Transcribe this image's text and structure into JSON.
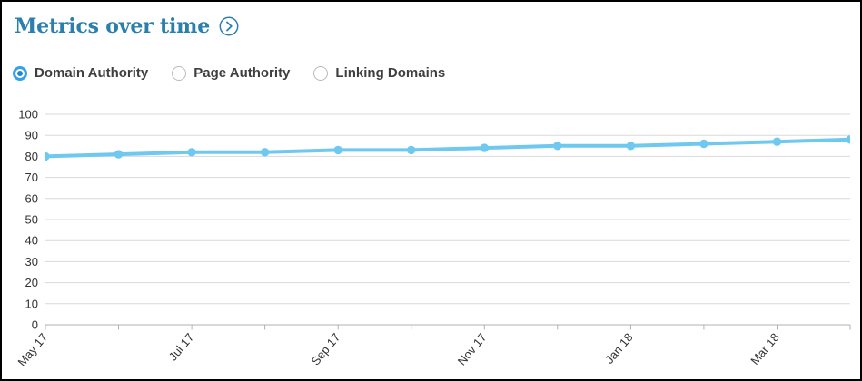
{
  "header": {
    "title": "Metrics over time",
    "chevron_icon": "chevron-right-circle-icon"
  },
  "metric_toggle": {
    "options": [
      {
        "label": "Domain Authority",
        "selected": true
      },
      {
        "label": "Page Authority",
        "selected": false
      },
      {
        "label": "Linking Domains",
        "selected": false
      }
    ]
  },
  "colors": {
    "title": "#2b7fac",
    "line": "#6fc8ef",
    "grid": "#d9d9d9",
    "axis": "#b0b0b0",
    "tick_text": "#333333",
    "radio_selected": "#34a1ee",
    "radio_dot": "#2287d2",
    "radio_border": "#b9b9b9"
  },
  "chart_data": {
    "type": "line",
    "title": "Metrics over time",
    "categories": [
      "May 17",
      "Jun 17",
      "Jul 17",
      "Aug 17",
      "Sep 17",
      "Oct 17",
      "Nov 17",
      "Dec 17",
      "Jan 18",
      "Feb 18",
      "Mar 18",
      "Apr 18"
    ],
    "series": [
      {
        "name": "Domain Authority",
        "values": [
          80,
          81,
          82,
          82,
          83,
          83,
          84,
          85,
          85,
          86,
          87,
          88
        ]
      }
    ],
    "x_tick_labels": [
      "May 17",
      "Jul 17",
      "Sep 17",
      "Nov 17",
      "Jan 18",
      "Mar 18"
    ],
    "x_label_every": 2,
    "xlabel": "",
    "ylabel": "",
    "ylim": [
      0,
      100
    ],
    "ytick_step": 10,
    "grid": "horizontal",
    "legend": "none"
  }
}
